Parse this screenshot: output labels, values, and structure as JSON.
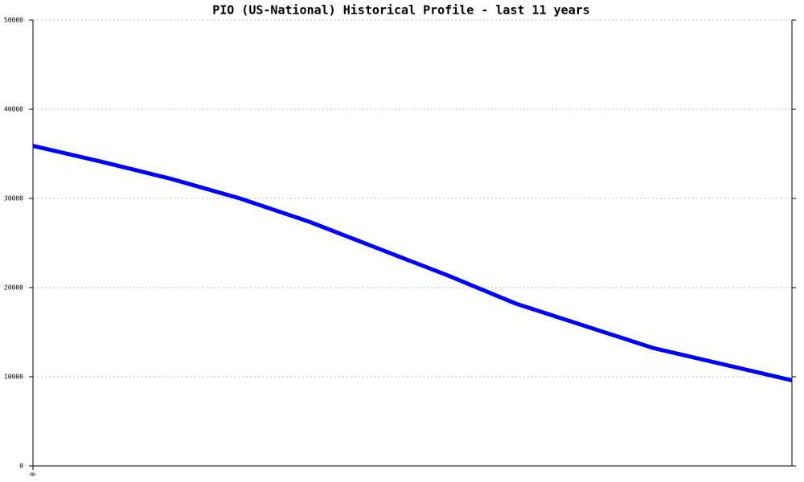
{
  "chart_data": {
    "type": "line",
    "title": "PIO (US-National) Historical Profile - last 11 years",
    "categories": [
      "0",
      null,
      null,
      null,
      null,
      null,
      null,
      null,
      null,
      null,
      null,
      null
    ],
    "series": [
      {
        "color": "#0000ff",
        "values": [
          35900,
          34100,
          32200,
          30000,
          27400,
          24400,
          21400,
          18200,
          15700,
          13200,
          11400,
          9600
        ]
      }
    ],
    "ylim": [
      0,
      50000
    ],
    "yticks": [
      0,
      10000,
      20000,
      30000,
      40000,
      50000
    ],
    "grid": true
  }
}
